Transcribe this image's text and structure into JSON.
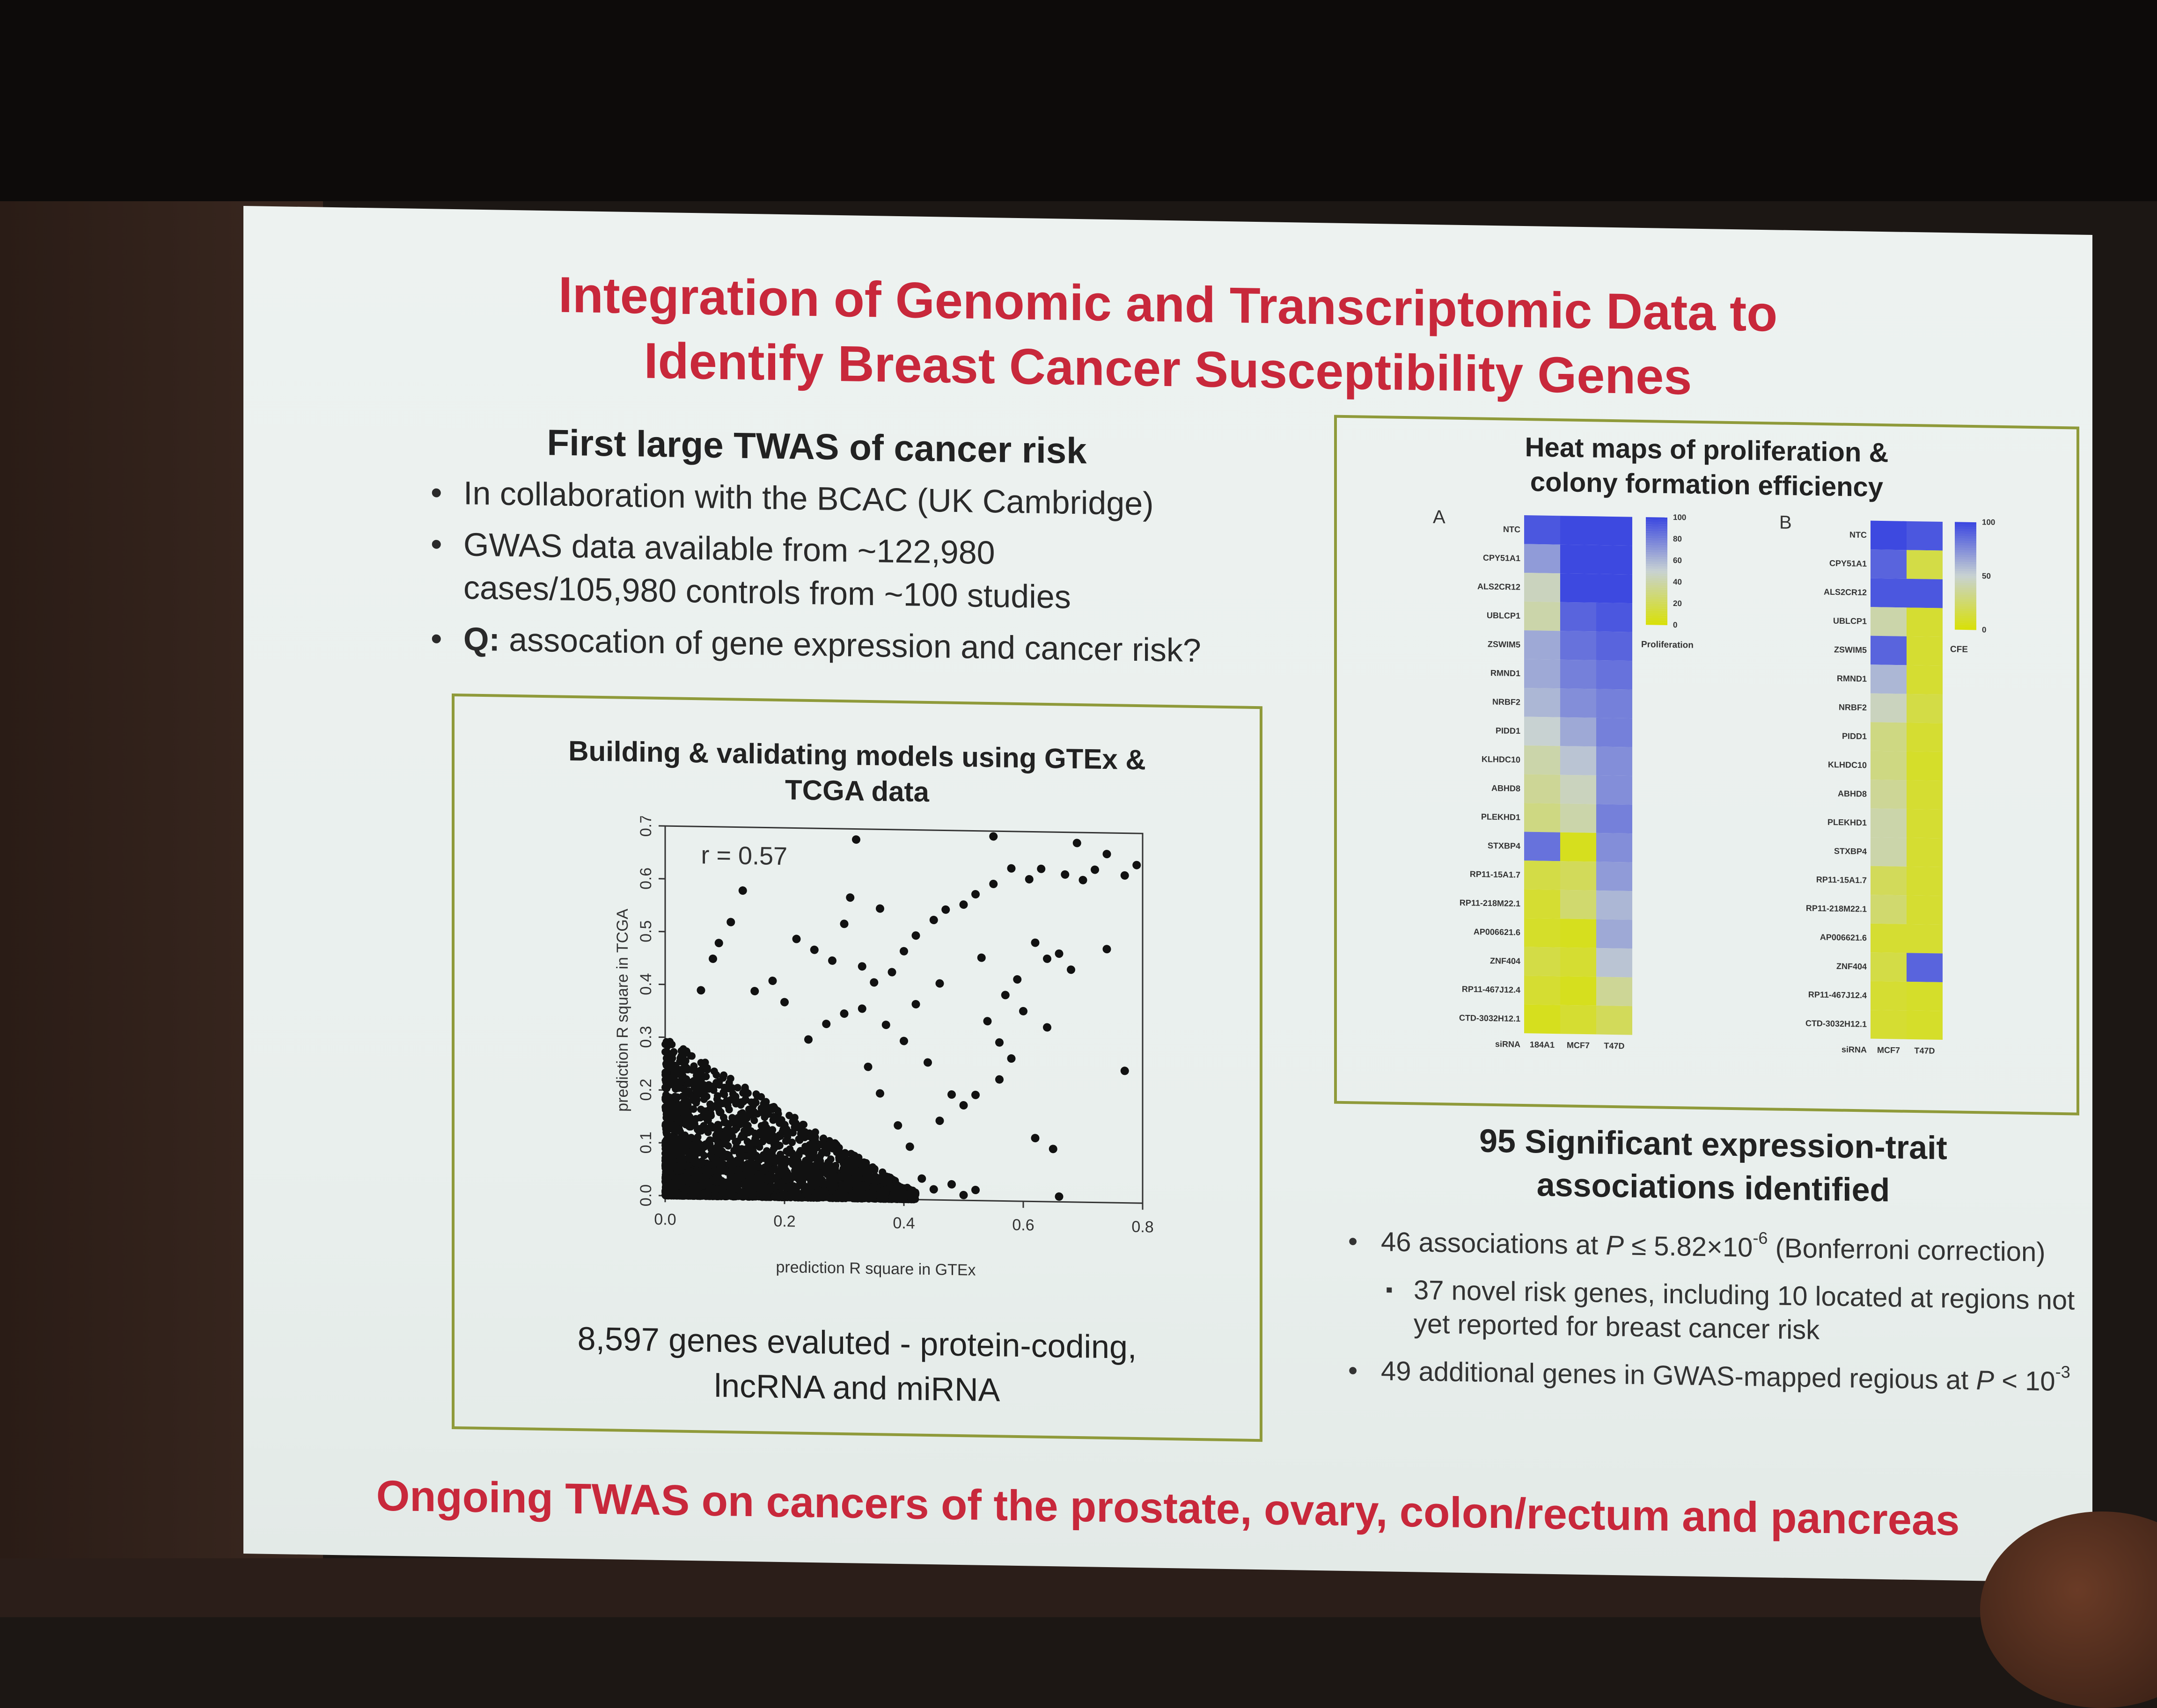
{
  "slide": {
    "title_line1": "Integration of Genomic and Transcriptomic Data to",
    "title_line2": "Identify Breast Cancer Susceptibility Genes",
    "footer": "Ongoing TWAS on cancers of the prostate, ovary, colon/rectum and pancreas"
  },
  "left": {
    "heading": "First large TWAS of cancer risk",
    "bullet1": "In collaboration with the BCAC (UK Cambridge)",
    "bullet2_line1": "GWAS data available from ~122,980",
    "bullet2_line2": "cases/105,980 controls from ~100 studies",
    "bullet3_bold": "Q:",
    "bullet3_rest": " assocation of gene expression and cancer risk?"
  },
  "scatter_panel": {
    "heading_line1": "Building & validating models using GTEx &",
    "heading_line2": "TCGA data",
    "footer_line1": "8,597 genes evaluted -  protein-coding,",
    "footer_line2": "lncRNA and miRNA"
  },
  "heatmap_panel": {
    "heading_line1": "Heat maps of proliferation &",
    "heading_line2": "colony formation efficiency"
  },
  "right": {
    "heading_line1": "95 Significant expression-trait",
    "heading_line2": "associations identified",
    "b1_pre": "46 associations at ",
    "b1_p": "P",
    "b1_mid": " ≤ 5.82×10",
    "b1_exp": "-6",
    "b1_post": " (Bonferroni correction)",
    "b2": "37 novel risk genes, including 10 located at regions not yet reported for breast cancer risk",
    "b3_pre": "49 additional genes in GWAS-mapped regious at ",
    "b3_p": "P",
    "b3_mid": " < 10",
    "b3_exp": "-3"
  },
  "colors": {
    "title_red": "#c8283b",
    "frame_olive": "#8f9a3a",
    "heat_blue": "#3d49e0",
    "heat_yellow": "#d8e00a"
  },
  "chart_data": [
    {
      "type": "scatter",
      "xlabel": "prediction R square in GTEx",
      "ylabel": "prediction R square in TCGA",
      "xlim": [
        0,
        0.8
      ],
      "ylim": [
        0,
        0.7
      ],
      "xticks": [
        "0.0",
        "0.2",
        "0.4",
        "0.6",
        "0.8"
      ],
      "yticks": [
        "0.0",
        "0.1",
        "0.2",
        "0.3",
        "0.4",
        "0.5",
        "0.6",
        "0.7"
      ],
      "annotation": "r = 0.57",
      "points": [
        [
          0.32,
          0.68
        ],
        [
          0.55,
          0.69
        ],
        [
          0.69,
          0.68
        ],
        [
          0.74,
          0.66
        ],
        [
          0.79,
          0.64
        ],
        [
          0.77,
          0.62
        ],
        [
          0.72,
          0.63
        ],
        [
          0.7,
          0.61
        ],
        [
          0.67,
          0.62
        ],
        [
          0.63,
          0.63
        ],
        [
          0.61,
          0.61
        ],
        [
          0.58,
          0.63
        ],
        [
          0.55,
          0.6
        ],
        [
          0.52,
          0.58
        ],
        [
          0.5,
          0.56
        ],
        [
          0.47,
          0.55
        ],
        [
          0.45,
          0.53
        ],
        [
          0.42,
          0.5
        ],
        [
          0.4,
          0.47
        ],
        [
          0.38,
          0.43
        ],
        [
          0.36,
          0.55
        ],
        [
          0.31,
          0.57
        ],
        [
          0.3,
          0.52
        ],
        [
          0.13,
          0.58
        ],
        [
          0.11,
          0.52
        ],
        [
          0.09,
          0.48
        ],
        [
          0.08,
          0.45
        ],
        [
          0.06,
          0.39
        ],
        [
          0.22,
          0.49
        ],
        [
          0.25,
          0.47
        ],
        [
          0.28,
          0.45
        ],
        [
          0.33,
          0.44
        ],
        [
          0.35,
          0.41
        ],
        [
          0.18,
          0.41
        ],
        [
          0.15,
          0.39
        ],
        [
          0.2,
          0.37
        ],
        [
          0.62,
          0.49
        ],
        [
          0.66,
          0.47
        ],
        [
          0.64,
          0.46
        ],
        [
          0.59,
          0.42
        ],
        [
          0.57,
          0.39
        ],
        [
          0.6,
          0.36
        ],
        [
          0.64,
          0.33
        ],
        [
          0.62,
          0.12
        ],
        [
          0.65,
          0.1
        ],
        [
          0.66,
          0.01
        ],
        [
          0.77,
          0.25
        ],
        [
          0.56,
          0.23
        ],
        [
          0.52,
          0.2
        ],
        [
          0.48,
          0.2
        ],
        [
          0.46,
          0.15
        ],
        [
          0.5,
          0.18
        ],
        [
          0.44,
          0.26
        ],
        [
          0.4,
          0.3
        ],
        [
          0.37,
          0.33
        ],
        [
          0.33,
          0.36
        ],
        [
          0.3,
          0.35
        ],
        [
          0.27,
          0.33
        ],
        [
          0.24,
          0.3
        ],
        [
          0.43,
          0.04
        ],
        [
          0.45,
          0.02
        ],
        [
          0.48,
          0.03
        ],
        [
          0.5,
          0.01
        ],
        [
          0.52,
          0.02
        ],
        [
          0.41,
          0.1
        ],
        [
          0.39,
          0.14
        ],
        [
          0.36,
          0.2
        ],
        [
          0.34,
          0.25
        ],
        [
          0.42,
          0.37
        ],
        [
          0.46,
          0.41
        ],
        [
          0.53,
          0.46
        ],
        [
          0.68,
          0.44
        ],
        [
          0.74,
          0.48
        ],
        [
          0.56,
          0.3
        ],
        [
          0.58,
          0.27
        ],
        [
          0.54,
          0.34
        ]
      ]
    },
    {
      "type": "heatmap",
      "panel": "A",
      "categories": [
        "NTC",
        "CPY51A1",
        "ALS2CR12",
        "UBLCP1",
        "ZSWIM5",
        "RMND1",
        "NRBF2",
        "PIDD1",
        "KLHDC10",
        "ABHD8",
        "PLEKHD1",
        "STXBP4",
        "RP11-15A1.7",
        "RP11-218M22.1",
        "AP006621.6",
        "ZNF404",
        "RP11-467J12.4",
        "CTD-3032H12.1"
      ],
      "xlabel": "siRNA",
      "columns": [
        "184A1",
        "MCF7",
        "T47D"
      ],
      "legend_title": "Proliferation",
      "legend_ticks": [
        "100",
        "80",
        "60",
        "40",
        "20",
        "0"
      ],
      "values": [
        [
          95,
          100,
          100
        ],
        [
          70,
          100,
          100
        ],
        [
          45,
          100,
          100
        ],
        [
          40,
          90,
          95
        ],
        [
          65,
          85,
          90
        ],
        [
          65,
          80,
          85
        ],
        [
          60,
          75,
          80
        ],
        [
          50,
          65,
          80
        ],
        [
          40,
          55,
          75
        ],
        [
          35,
          45,
          75
        ],
        [
          30,
          40,
          80
        ],
        [
          85,
          5,
          75
        ],
        [
          15,
          20,
          70
        ],
        [
          10,
          25,
          60
        ],
        [
          8,
          5,
          65
        ],
        [
          15,
          10,
          55
        ],
        [
          10,
          5,
          35
        ],
        [
          5,
          10,
          20
        ]
      ]
    },
    {
      "type": "heatmap",
      "panel": "B",
      "categories": [
        "NTC",
        "CPY51A1",
        "ALS2CR12",
        "UBLCP1",
        "ZSWIM5",
        "RMND1",
        "NRBF2",
        "PIDD1",
        "KLHDC10",
        "ABHD8",
        "PLEKHD1",
        "STXBP4",
        "RP11-15A1.7",
        "RP11-218M22.1",
        "AP006621.6",
        "ZNF404",
        "RP11-467J12.4",
        "CTD-3032H12.1"
      ],
      "xlabel": "siRNA",
      "columns": [
        "MCF7",
        "T47D"
      ],
      "legend_title": "CFE",
      "legend_ticks": [
        "100",
        "50",
        "0"
      ],
      "values": [
        [
          100,
          95
        ],
        [
          90,
          15
        ],
        [
          95,
          95
        ],
        [
          40,
          10
        ],
        [
          90,
          10
        ],
        [
          60,
          10
        ],
        [
          45,
          15
        ],
        [
          30,
          10
        ],
        [
          30,
          8
        ],
        [
          35,
          10
        ],
        [
          40,
          10
        ],
        [
          40,
          10
        ],
        [
          20,
          10
        ],
        [
          25,
          10
        ],
        [
          10,
          10
        ],
        [
          15,
          90
        ],
        [
          10,
          8
        ],
        [
          10,
          8
        ]
      ]
    }
  ]
}
